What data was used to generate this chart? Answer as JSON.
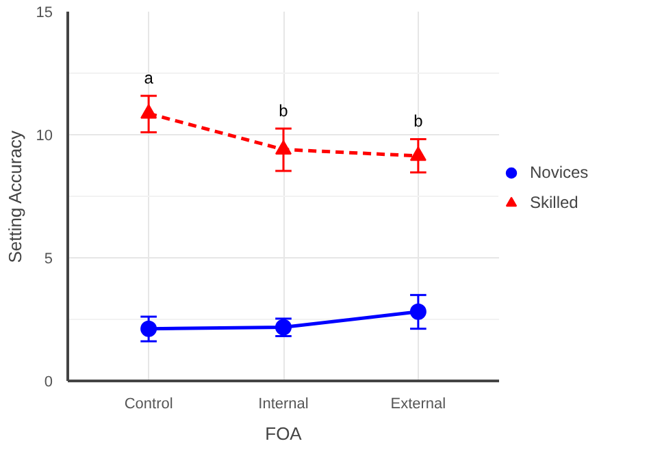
{
  "chart_data": {
    "type": "line",
    "xlabel": "FOA",
    "ylabel": "Setting Accuracy",
    "categories": [
      "Control",
      "Internal",
      "External"
    ],
    "series": [
      {
        "name": "Novices",
        "color": "#0000ff",
        "values": [
          2.12,
          2.18,
          2.81
        ],
        "errors": [
          [
            1.61,
            2.61
          ],
          [
            1.82,
            2.53
          ],
          [
            2.12,
            3.49
          ]
        ],
        "marker": "circle",
        "line_style": "solid"
      },
      {
        "name": "Skilled",
        "color": "#ff0000",
        "values": [
          10.86,
          9.4,
          9.14
        ],
        "errors": [
          [
            10.1,
            11.58
          ],
          [
            8.53,
            10.25
          ],
          [
            8.47,
            9.82
          ]
        ],
        "marker": "triangle",
        "line_style": "dashed"
      }
    ],
    "ylim": [
      0,
      15
    ],
    "yticks": [
      0,
      5,
      10,
      15
    ],
    "grid": true,
    "legend": "right",
    "annotations": [
      "a",
      "b",
      "b"
    ]
  }
}
